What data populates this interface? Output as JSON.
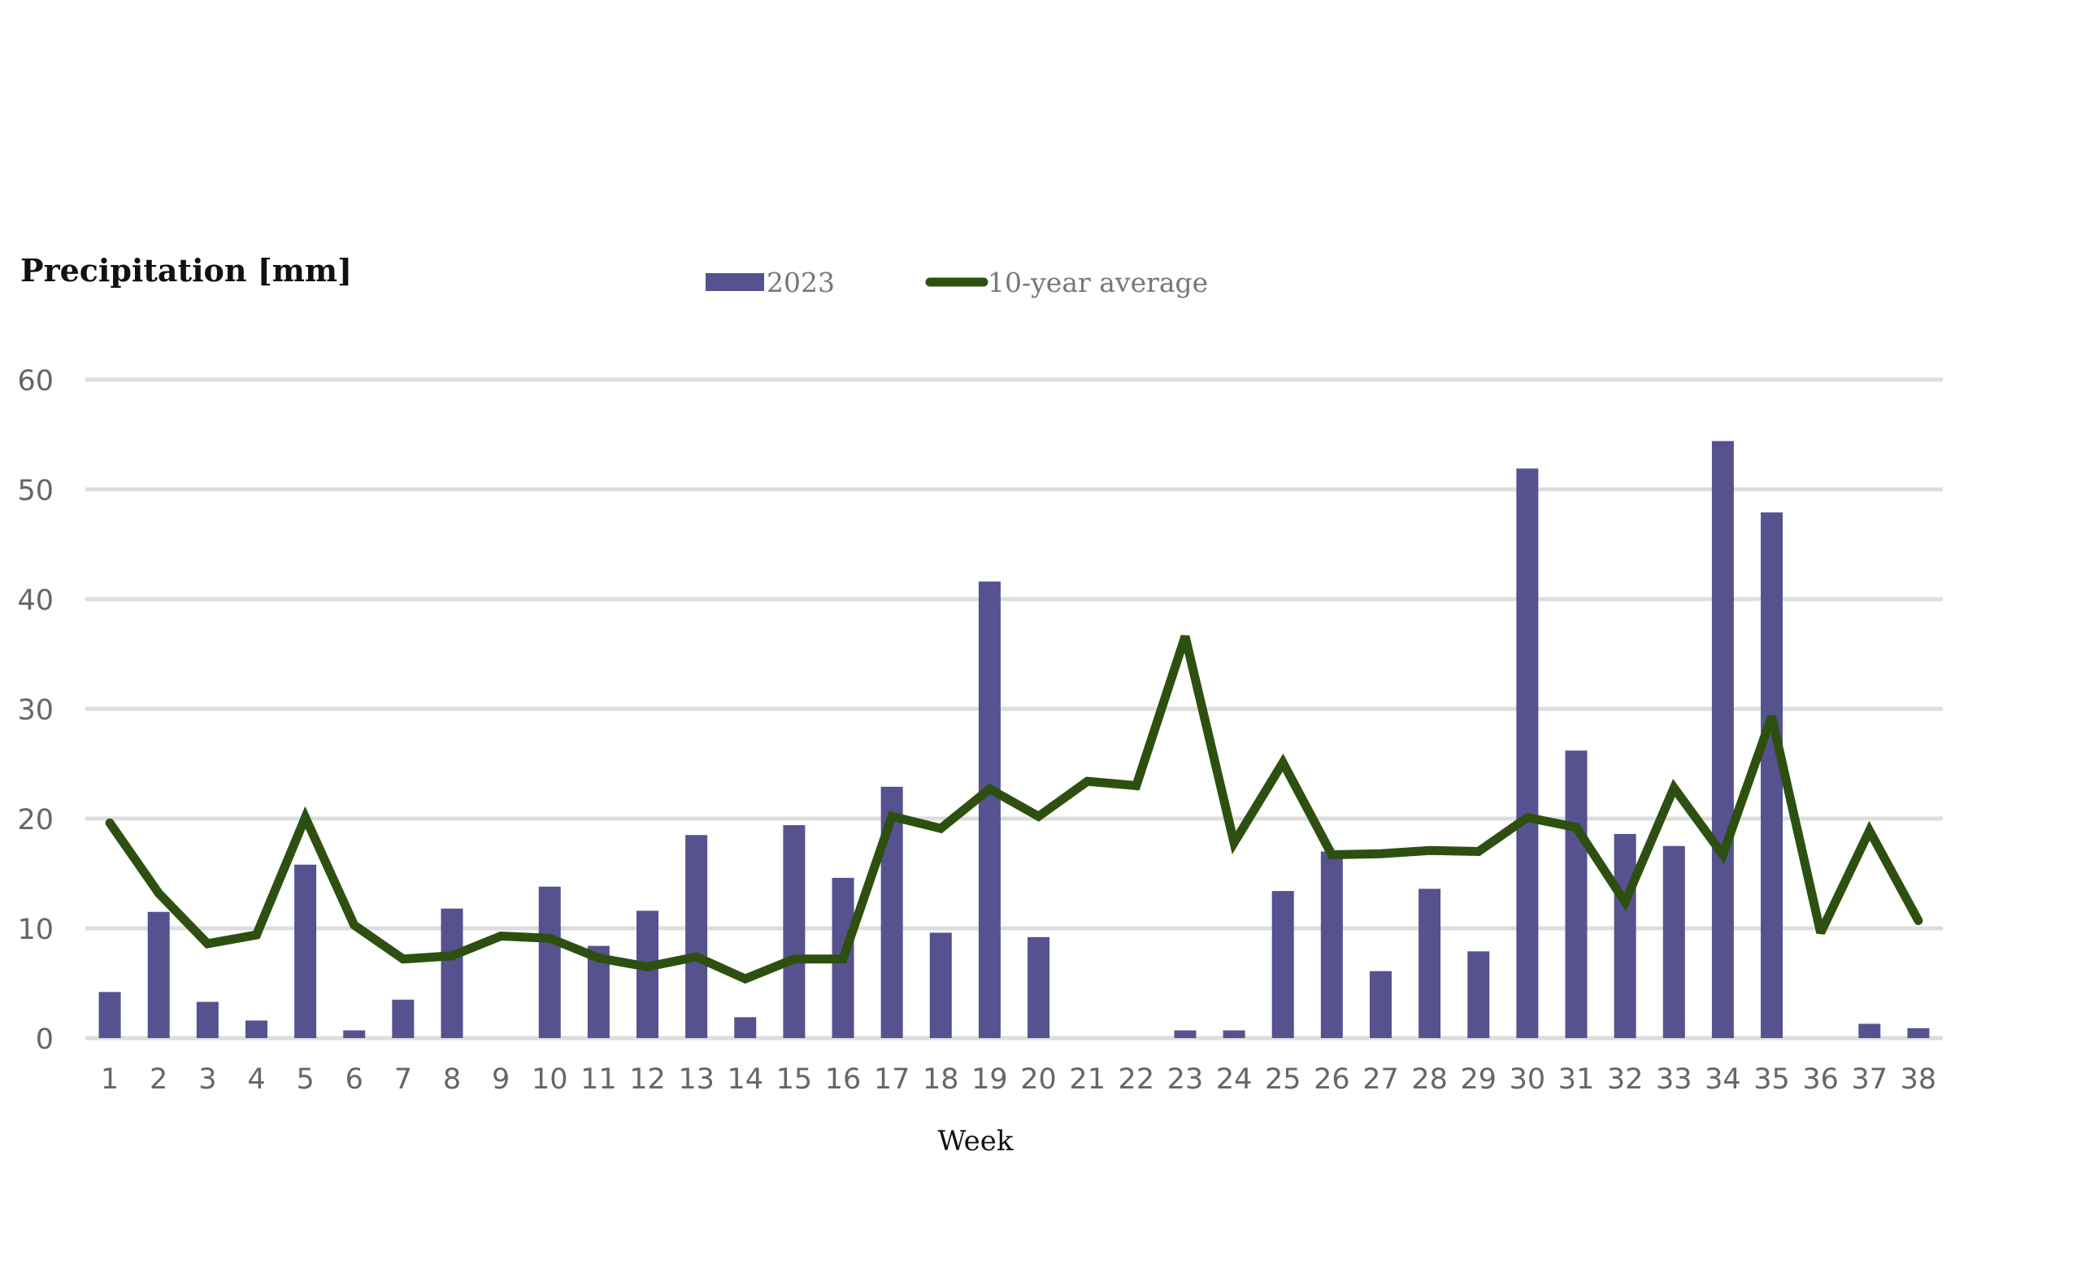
{
  "chart_data": {
    "type": "bar",
    "title": "",
    "ylabel": "Precipitation [mm]",
    "xlabel": "Week",
    "ylim": [
      0,
      60
    ],
    "yticks": [
      "0",
      "10",
      "20",
      "30",
      "40",
      "50",
      "60"
    ],
    "grid": true,
    "legend_position": "top",
    "categories": [
      "1",
      "2",
      "3",
      "4",
      "5",
      "6",
      "7",
      "8",
      "9",
      "10",
      "11",
      "12",
      "13",
      "14",
      "15",
      "16",
      "17",
      "18",
      "19",
      "20",
      "21",
      "22",
      "23",
      "24",
      "25",
      "26",
      "27",
      "28",
      "29",
      "30",
      "31",
      "32",
      "33",
      "34",
      "35",
      "36",
      "37",
      "38"
    ],
    "series": [
      {
        "name": "2023",
        "kind": "bar",
        "color": "#56528f",
        "values": [
          4.2,
          11.5,
          3.3,
          1.6,
          15.8,
          0.7,
          3.5,
          11.8,
          0,
          13.8,
          8.4,
          11.6,
          18.5,
          1.9,
          19.4,
          14.6,
          22.9,
          9.6,
          41.6,
          9.2,
          0,
          0,
          0.7,
          0.7,
          13.4,
          17,
          6.1,
          13.6,
          7.9,
          51.9,
          26.2,
          18.6,
          17.5,
          54.4,
          47.9,
          0,
          1.3,
          0.9
        ]
      },
      {
        "name": "10-year average",
        "kind": "line",
        "color": "#2d5010",
        "values": [
          19.6,
          13.2,
          8.6,
          9.4,
          20.1,
          10.3,
          7.2,
          7.5,
          9.3,
          9.1,
          7.3,
          6.5,
          7.4,
          5.4,
          7.2,
          7.2,
          20.2,
          19.1,
          22.7,
          20.2,
          23.4,
          23,
          36.6,
          17.8,
          25.1,
          16.7,
          16.8,
          17.1,
          17,
          20.1,
          19.2,
          12.4,
          22.8,
          16.7,
          29.3,
          9.6,
          18.9,
          10.7
        ]
      }
    ]
  }
}
